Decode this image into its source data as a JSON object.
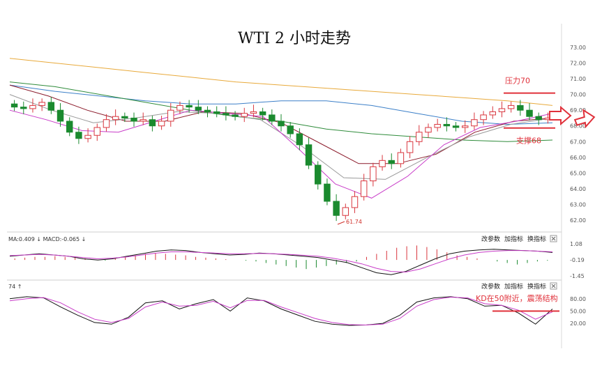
{
  "title": "WTI 2 小时走势",
  "chart_data": [
    {
      "type": "candlestick",
      "panel": "price",
      "title": "WTI 2 小时走势",
      "ylim": [
        61.3,
        73.5
      ],
      "y_ticks": [
        "73.00",
        "72.00",
        "71.00",
        "70.00",
        "69.00",
        "68.00",
        "67.00",
        "66.00",
        "65.00",
        "64.00",
        "63.00",
        "62.00"
      ],
      "candles_close_approx": [
        69.2,
        69.1,
        69.3,
        69.5,
        69.0,
        68.3,
        67.6,
        67.2,
        67.4,
        67.9,
        68.4,
        68.6,
        68.5,
        68.3,
        68.4,
        68.0,
        68.3,
        69.0,
        69.3,
        69.2,
        69.0,
        68.9,
        68.8,
        68.7,
        68.6,
        68.8,
        68.9,
        68.7,
        68.3,
        68.0,
        67.5,
        66.8,
        65.5,
        64.3,
        63.2,
        62.3,
        62.8,
        63.5,
        64.5,
        65.4,
        65.8,
        65.6,
        66.3,
        67.0,
        67.6,
        67.9,
        68.1,
        68.0,
        67.9,
        68.0,
        68.4,
        68.7,
        68.9,
        69.1,
        69.3,
        69.0,
        68.6,
        68.4,
        68.5
      ],
      "moving_averages": [
        {
          "color": "#e8a93a",
          "values": [
            72.3,
            72.0,
            71.7,
            71.4,
            71.1,
            70.8,
            70.6,
            70.4,
            70.2,
            70.0,
            69.8,
            69.6,
            69.3
          ]
        },
        {
          "color": "#3b7fc8",
          "values": [
            70.6,
            70.2,
            69.9,
            69.6,
            69.4,
            69.4,
            69.6,
            69.6,
            69.3,
            68.8,
            68.3,
            68.1,
            68.2
          ]
        },
        {
          "color": "#2e8b3a",
          "values": [
            70.8,
            70.5,
            70.0,
            69.5,
            69.0,
            68.6,
            68.3,
            67.8,
            67.5,
            67.3,
            67.1,
            67.0,
            67.1
          ]
        },
        {
          "color": "#8b1a2a",
          "values": [
            70.6,
            69.9,
            69.0,
            68.3,
            68.3,
            68.9,
            68.8,
            68.2,
            66.9,
            65.6,
            65.6,
            66.2,
            67.6,
            68.3,
            68.5
          ]
        },
        {
          "color": "#999999",
          "values": [
            70.0,
            69.0,
            68.2,
            68.5,
            68.9,
            68.8,
            68.4,
            66.7,
            64.7,
            64.6,
            66.0,
            67.3,
            68.1,
            68.5
          ]
        },
        {
          "color": "#c83bc8",
          "values": [
            69.0,
            68.4,
            67.7,
            67.6,
            68.3,
            69.0,
            68.8,
            68.6,
            66.5,
            64.3,
            63.4,
            64.8,
            66.8,
            67.9,
            68.3,
            68.8
          ]
        }
      ],
      "annotations": [
        {
          "text": "压力70",
          "value": 70.0,
          "color": "#e0303a"
        },
        {
          "text": "支撑68",
          "value": 68.0,
          "color": "#e0303a"
        },
        {
          "text": "61.74",
          "kind": "low_marker"
        }
      ]
    },
    {
      "type": "bar",
      "panel": "macd",
      "header_text": "MA:0.409 ↓ MACD:-0.065 ↓",
      "ylim": [
        -1.45,
        1.08
      ],
      "y_ticks": [
        "1.08",
        "-0.19",
        "-1.45"
      ],
      "histogram_values": [
        0.1,
        0.15,
        0.2,
        0.2,
        0.25,
        0.2,
        0.15,
        0.1,
        0.0,
        -0.05,
        0.1,
        0.2,
        0.3,
        0.4,
        0.45,
        0.4,
        0.35,
        0.3,
        0.2,
        0.15,
        0.1,
        0.05,
        0.0,
        -0.05,
        -0.1,
        -0.2,
        -0.3,
        -0.4,
        -0.5,
        -0.6,
        -0.5,
        -0.4,
        -0.3,
        -0.2,
        -0.1,
        0.2,
        0.4,
        0.6,
        0.8,
        0.9,
        0.95,
        0.85,
        0.7,
        0.5,
        0.3,
        0.2,
        0.1,
        0.0,
        -0.1,
        -0.2,
        -0.3,
        -0.2,
        -0.1,
        -0.05
      ],
      "buttons": [
        "改参数",
        "加指标",
        "换指标"
      ]
    },
    {
      "type": "line",
      "panel": "kd",
      "header_text": "74 ↑",
      "ylim": [
        10,
        95
      ],
      "y_ticks": [
        "80.00",
        "50.00",
        "20.00"
      ],
      "series": [
        {
          "color": "#111111",
          "values": [
            80,
            85,
            82,
            60,
            40,
            22,
            18,
            35,
            70,
            75,
            55,
            68,
            78,
            50,
            82,
            75,
            55,
            40,
            25,
            18,
            15,
            16,
            20,
            40,
            72,
            82,
            85,
            80,
            62,
            64,
            45,
            18,
            55
          ]
        },
        {
          "color": "#c83bc8",
          "values": [
            75,
            80,
            83,
            70,
            48,
            30,
            22,
            32,
            60,
            72,
            62,
            64,
            74,
            58,
            76,
            76,
            60,
            46,
            32,
            22,
            17,
            16,
            18,
            32,
            62,
            78,
            84,
            82,
            68,
            64,
            52,
            30,
            48
          ]
        }
      ],
      "annotations": [
        {
          "text": "KD在50附近，震荡结构",
          "value": 50,
          "color": "#e0303a"
        }
      ],
      "buttons": [
        "改参数",
        "加指标",
        "换指标"
      ]
    }
  ]
}
